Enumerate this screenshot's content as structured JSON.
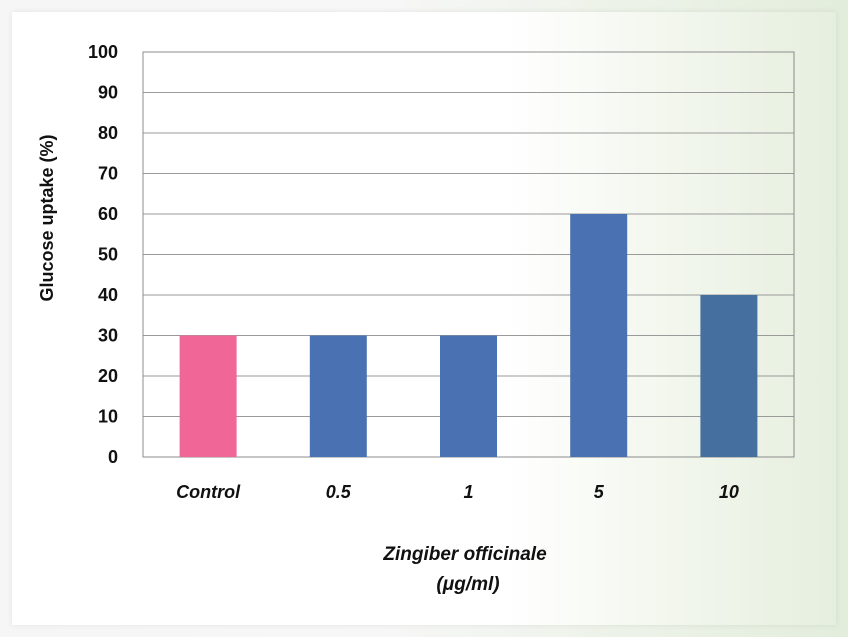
{
  "chart_data": {
    "type": "bar",
    "categories": [
      "Control",
      "0.5",
      "1",
      "5",
      "10"
    ],
    "values": [
      30,
      30,
      30,
      60,
      40
    ],
    "bar_colors": [
      "#ef6697",
      "#4a72b3",
      "#4a72b3",
      "#4a72b3",
      "#456f9e"
    ],
    "title": "",
    "xlabel": "Zingiber officinale",
    "xlabel_unit": "(μg/ml)",
    "ylabel": "Glucose uptake (%)",
    "ylim": [
      0,
      100
    ],
    "yticks": [
      0,
      10,
      20,
      30,
      40,
      50,
      60,
      70,
      80,
      90,
      100
    ],
    "grid": true,
    "legend": "none"
  }
}
